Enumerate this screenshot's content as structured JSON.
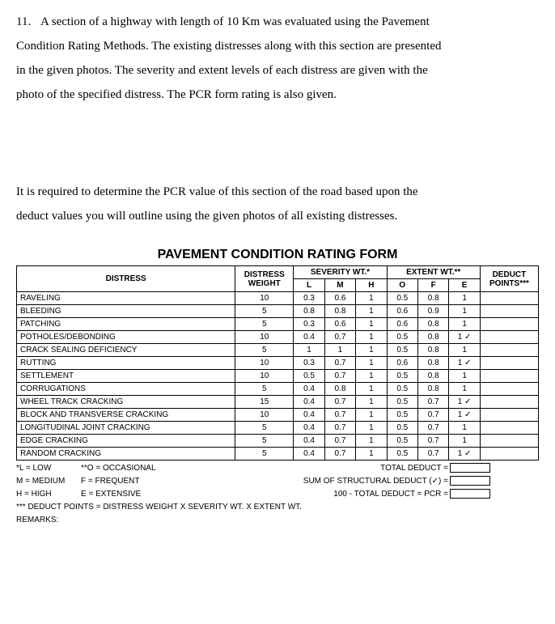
{
  "question": {
    "number": "11.",
    "para1_line1": "A section of a highway with length of 10 Km was evaluated using the Pavement",
    "para1_line2": "Condition Rating Methods. The existing distresses along with this section are presented",
    "para1_line3": "in the given photos. The severity and extent levels of each distress are given with the",
    "para1_line4": "photo of the specified distress. The PCR form rating is also given.",
    "para2_line1": "It is required to determine the PCR value of this section of the road based upon the",
    "para2_line2": "deduct values you will outline using the given photos of all existing distresses."
  },
  "form": {
    "title": "PAVEMENT CONDITION RATING FORM",
    "headers": {
      "distress": "DISTRESS",
      "weight": "DISTRESS WEIGHT",
      "severity": "SEVERITY WT.*",
      "extent": "EXTENT WT.**",
      "deduct": "DEDUCT POINTS***",
      "L": "L",
      "M": "M",
      "H": "H",
      "O": "O",
      "F": "F",
      "E": "E"
    },
    "rows": [
      {
        "name": "RAVELING",
        "weight": "10",
        "L": "0.3",
        "M": "0.6",
        "H": "1",
        "O": "0.5",
        "F": "0.8",
        "E": "1"
      },
      {
        "name": "BLEEDING",
        "weight": "5",
        "L": "0.8",
        "M": "0.8",
        "H": "1",
        "O": "0.6",
        "F": "0.9",
        "E": "1"
      },
      {
        "name": "PATCHING",
        "weight": "5",
        "L": "0.3",
        "M": "0.6",
        "H": "1",
        "O": "0.6",
        "F": "0.8",
        "E": "1"
      },
      {
        "name": "POTHOLES/DEBONDING",
        "weight": "10",
        "L": "0.4",
        "M": "0.7",
        "H": "1",
        "O": "0.5",
        "F": "0.8",
        "E": "1 ✓"
      },
      {
        "name": "CRACK SEALING DEFICIENCY",
        "weight": "5",
        "L": "1",
        "M": "1",
        "H": "1",
        "O": "0.5",
        "F": "0.8",
        "E": "1"
      },
      {
        "name": "RUTTING",
        "weight": "10",
        "L": "0.3",
        "M": "0.7",
        "H": "1",
        "O": "0.6",
        "F": "0.8",
        "E": "1 ✓"
      },
      {
        "name": "SETTLEMENT",
        "weight": "10",
        "L": "0.5",
        "M": "0.7",
        "H": "1",
        "O": "0.5",
        "F": "0.8",
        "E": "1"
      },
      {
        "name": "CORRUGATIONS",
        "weight": "5",
        "L": "0.4",
        "M": "0.8",
        "H": "1",
        "O": "0.5",
        "F": "0.8",
        "E": "1"
      },
      {
        "name": "WHEEL TRACK CRACKING",
        "weight": "15",
        "L": "0.4",
        "M": "0.7",
        "H": "1",
        "O": "0.5",
        "F": "0.7",
        "E": "1 ✓"
      },
      {
        "name": "BLOCK AND TRANSVERSE CRACKING",
        "weight": "10",
        "L": "0.4",
        "M": "0.7",
        "H": "1",
        "O": "0.5",
        "F": "0.7",
        "E": "1 ✓"
      },
      {
        "name": "LONGITUDINAL JOINT CRACKING",
        "weight": "5",
        "L": "0.4",
        "M": "0.7",
        "H": "1",
        "O": "0.5",
        "F": "0.7",
        "E": "1"
      },
      {
        "name": "EDGE CRACKING",
        "weight": "5",
        "L": "0.4",
        "M": "0.7",
        "H": "1",
        "O": "0.5",
        "F": "0.7",
        "E": "1"
      },
      {
        "name": "RANDOM CRACKING",
        "weight": "5",
        "L": "0.4",
        "M": "0.7",
        "H": "1",
        "O": "0.5",
        "F": "0.7",
        "E": "1 ✓"
      }
    ],
    "legend": {
      "l_low": "*L = LOW",
      "o_occ": "**O = OCCASIONAL",
      "m_med": "M = MEDIUM",
      "f_freq": "F = FREQUENT",
      "h_high": "H = HIGH",
      "e_ext": "E = EXTENSIVE",
      "total_deduct": "TOTAL DEDUCT =",
      "sum_struct": "SUM OF STRUCTURAL DEDUCT (✓) =",
      "pcr": "100 - TOTAL DEDUCT = PCR =",
      "note": "*** DEDUCT POINTS = DISTRESS WEIGHT X SEVERITY WT.  X EXTENT WT.",
      "remarks": "REMARKS:"
    }
  }
}
